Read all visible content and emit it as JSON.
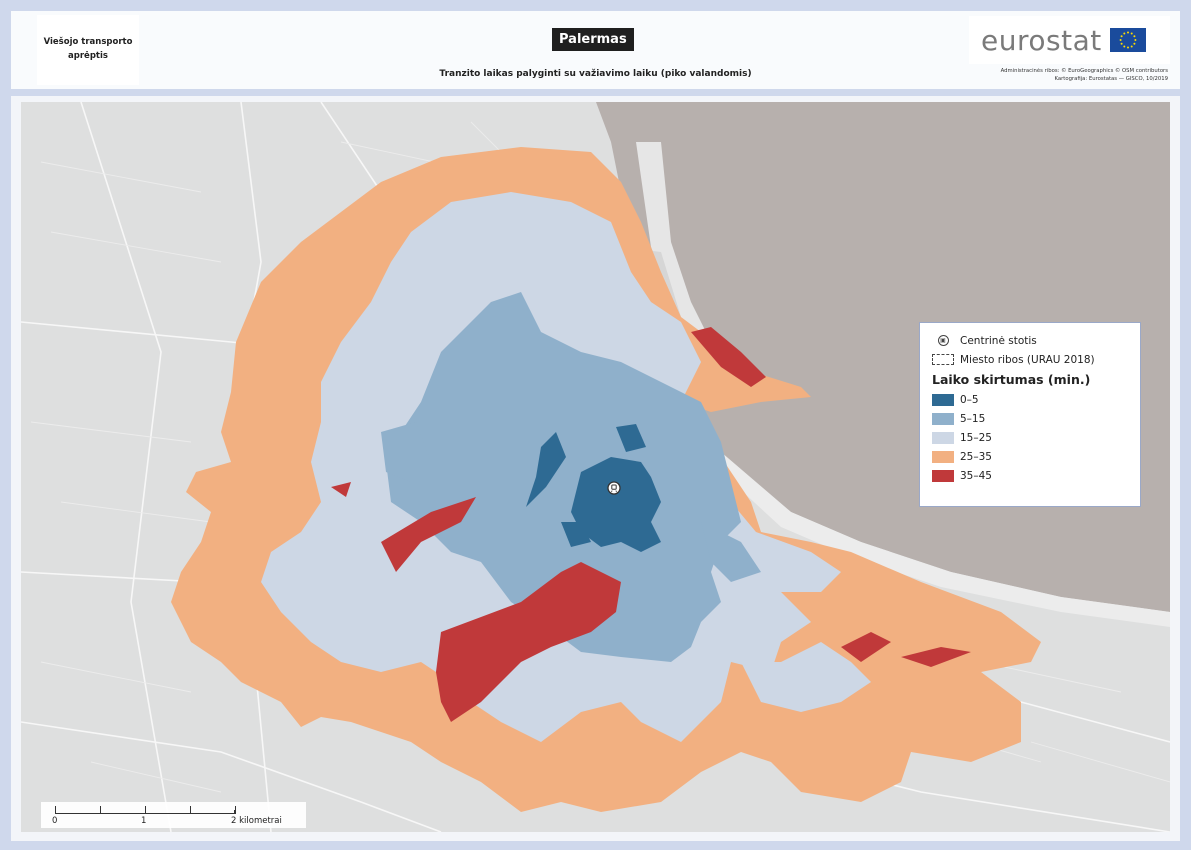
{
  "header": {
    "section_title": "Viešojo transporto aprėptis",
    "city": "Palermas",
    "subtitle": "Tranzito laikas palyginti su važiavimo laiku (piko valandomis)",
    "logo_text": "eurostat",
    "logo_flag_icon": "eu-flag-icon",
    "credits_line1": "Administracinės ribos: © EuroGeographics © OSM contributors",
    "credits_line2": "Kartografija: Eurostatas — GISCO, 10/2019"
  },
  "legend": {
    "station_label": "Centrinė stotis",
    "boundary_label": "Miesto ribos (URAU 2018)",
    "title": "Laiko skirtumas (min.)",
    "classes": [
      {
        "label": "0–5",
        "color": "#2e6a93"
      },
      {
        "label": "5–15",
        "color": "#8fb0cb"
      },
      {
        "label": "15–25",
        "color": "#cdd7e5"
      },
      {
        "label": "25–35",
        "color": "#f2b081"
      },
      {
        "label": "35–45",
        "color": "#c0393a"
      }
    ]
  },
  "scalebar": {
    "labels": [
      "0",
      "1",
      "2 kilometrai"
    ]
  },
  "map": {
    "sea_color": "#b7b0ad",
    "land_color": "#dedfdf",
    "station_icon": "train-station-icon"
  }
}
